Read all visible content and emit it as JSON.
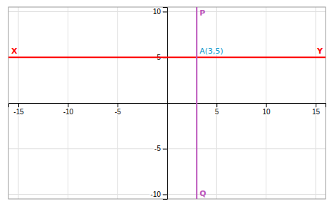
{
  "chart_data": {
    "type": "line",
    "xlim": [
      -16,
      16
    ],
    "ylim": [
      -10.5,
      10.5
    ],
    "xticks": [
      -15,
      -10,
      -5,
      5,
      10,
      15
    ],
    "yticks": [
      -10,
      -5,
      5,
      10
    ],
    "grid": true,
    "reference_lines": [
      {
        "axis": "y",
        "value": 5,
        "color": "red",
        "labels": [
          "X",
          "Y"
        ]
      },
      {
        "axis": "x",
        "value": 3,
        "color": "#bb55bb",
        "labels": [
          "P",
          "Q"
        ]
      }
    ],
    "annotations": [
      {
        "text": "A(3,5)",
        "x": 3,
        "y": 5,
        "color": "#1199cc"
      }
    ]
  }
}
